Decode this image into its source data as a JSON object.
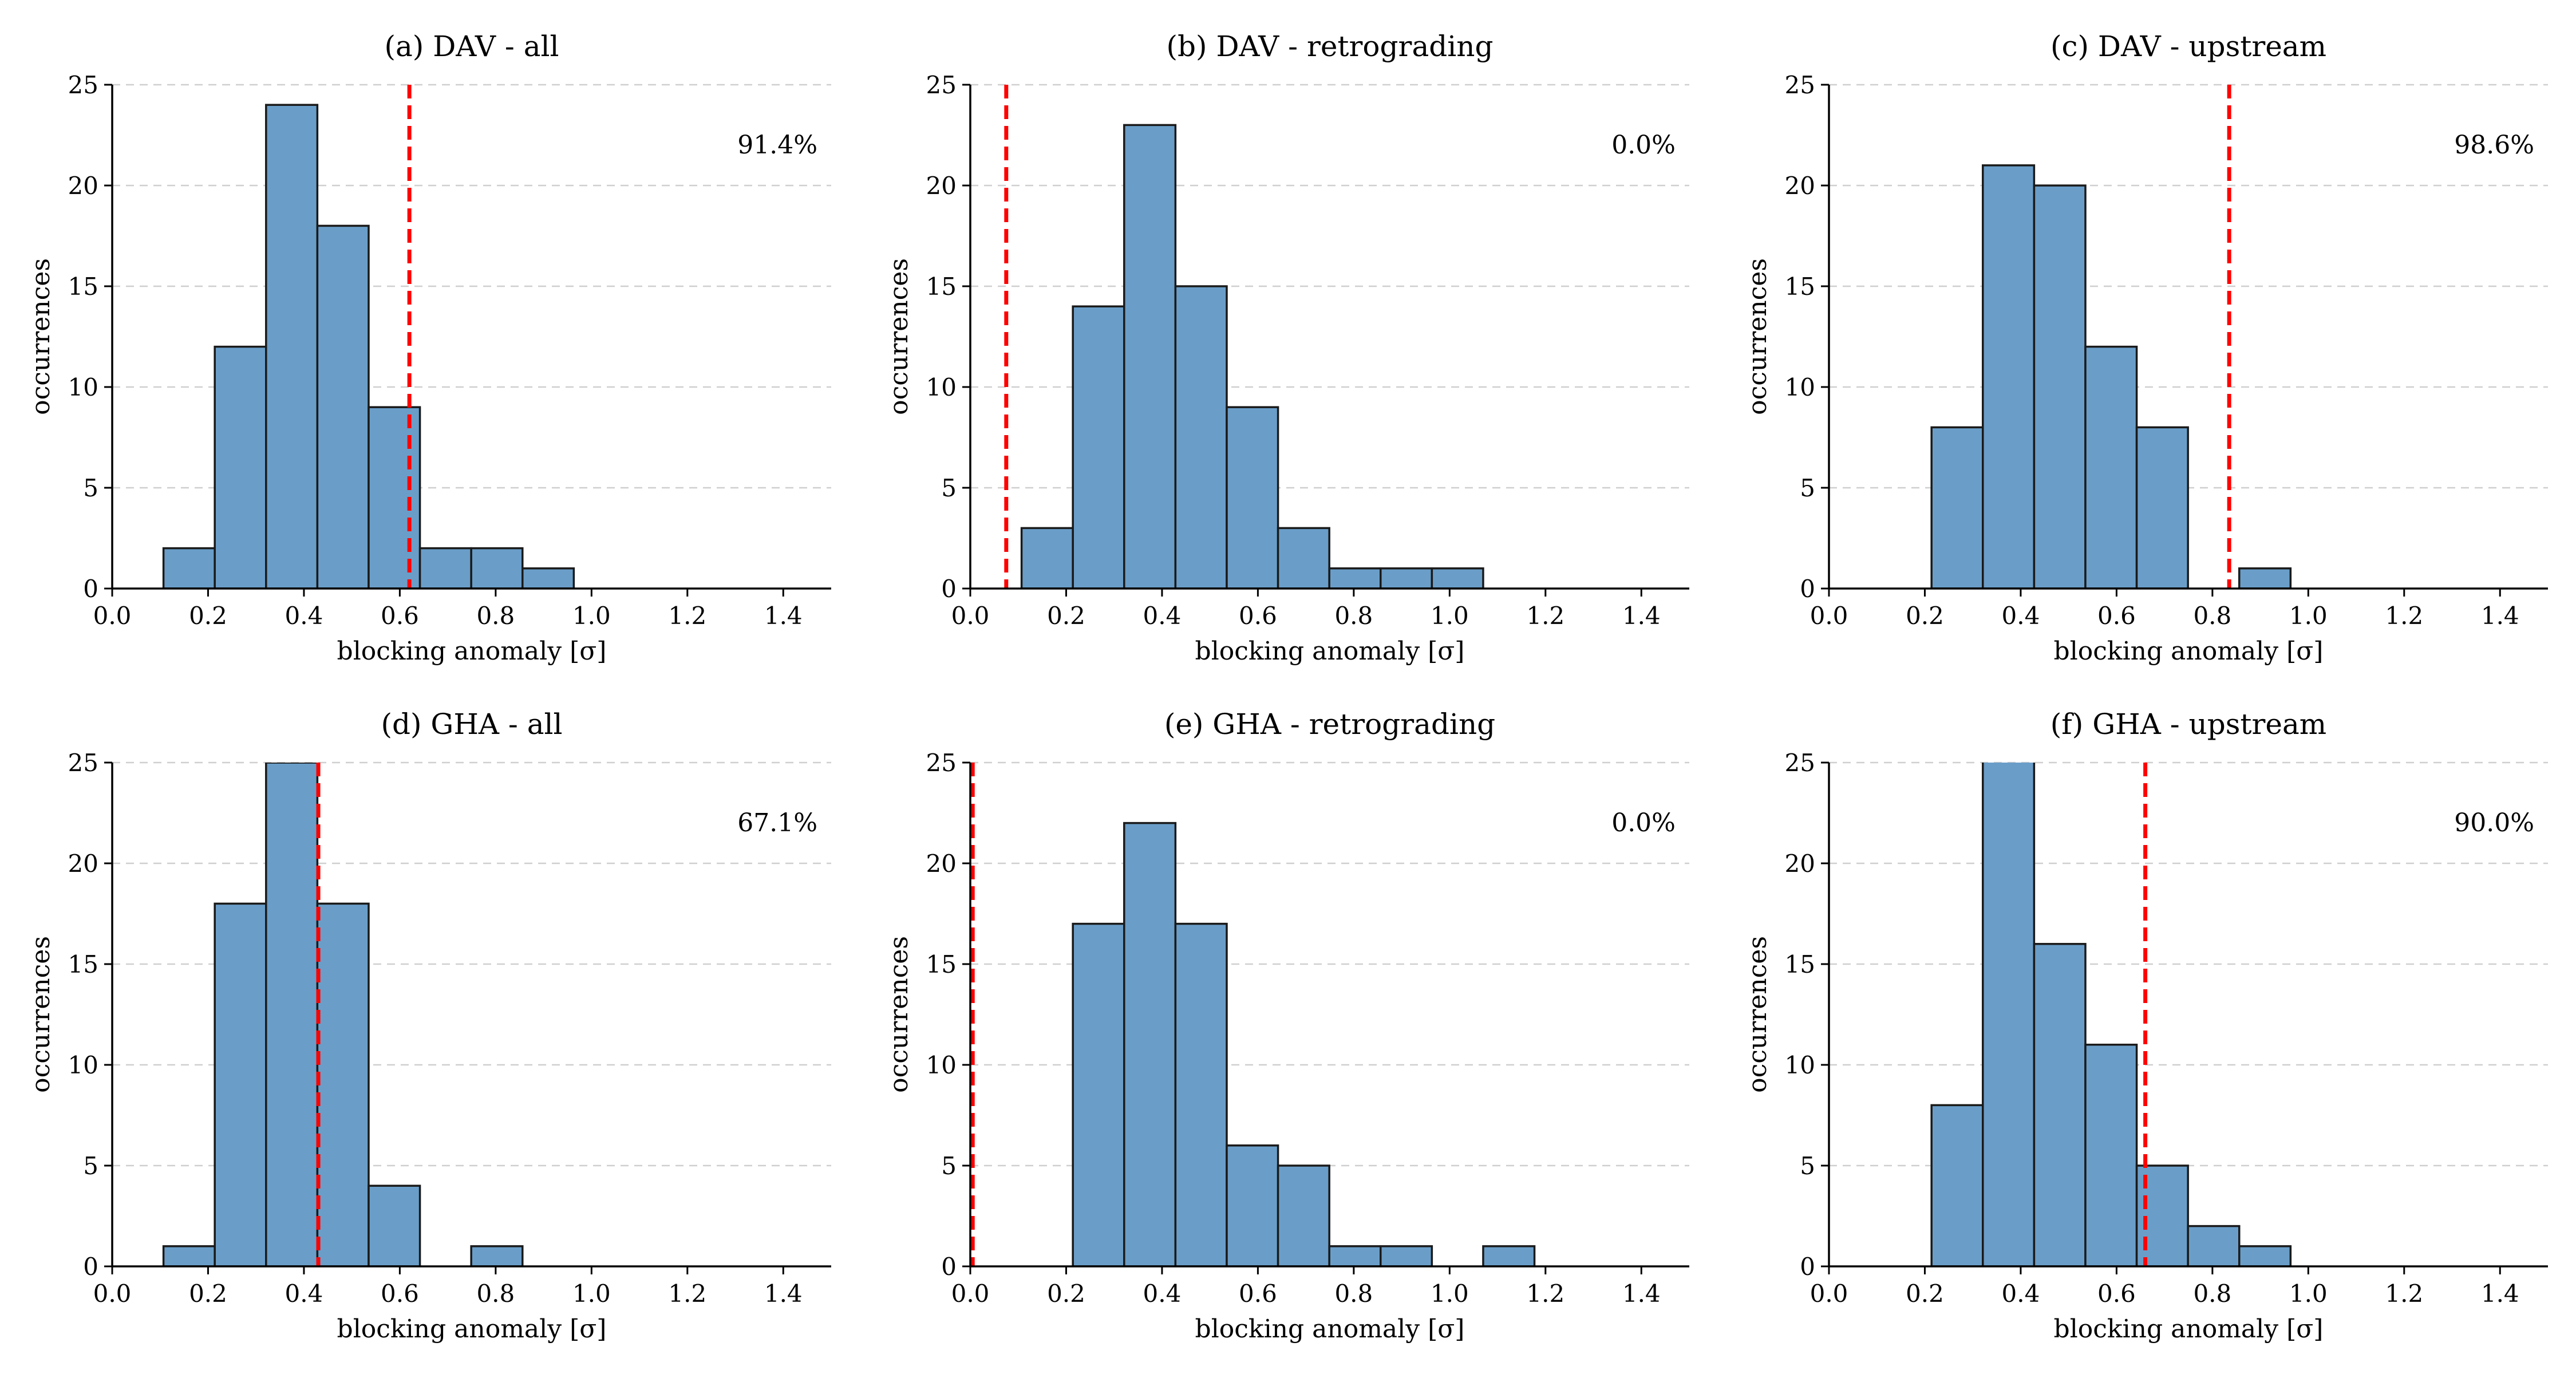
{
  "chart_data": [
    {
      "type": "bar",
      "title": "(a) DAV - all",
      "xlabel": "blocking anomaly [σ]",
      "ylabel": "occurrences",
      "xlim": [
        0.0,
        1.5
      ],
      "ylim": [
        0,
        25
      ],
      "xticks": [
        "0.0",
        "0.2",
        "0.4",
        "0.6",
        "0.8",
        "1.0",
        "1.2",
        "1.4"
      ],
      "yticks": [
        "0",
        "5",
        "10",
        "15",
        "20",
        "25"
      ],
      "bins": [
        [
          0.107,
          0.214
        ],
        [
          0.214,
          0.321
        ],
        [
          0.321,
          0.428
        ],
        [
          0.428,
          0.535
        ],
        [
          0.535,
          0.642
        ],
        [
          0.642,
          0.749
        ],
        [
          0.749,
          0.856
        ],
        [
          0.856,
          0.963
        ]
      ],
      "values": [
        2,
        12,
        24,
        18,
        9,
        2,
        2,
        1
      ],
      "threshold": 0.62,
      "percentage": "91.4%"
    },
    {
      "type": "bar",
      "title": "(b) DAV - retrograding",
      "xlabel": "blocking anomaly [σ]",
      "ylabel": "occurrences",
      "xlim": [
        0.0,
        1.5
      ],
      "ylim": [
        0,
        25
      ],
      "xticks": [
        "0.0",
        "0.2",
        "0.4",
        "0.6",
        "0.8",
        "1.0",
        "1.2",
        "1.4"
      ],
      "yticks": [
        "0",
        "5",
        "10",
        "15",
        "20",
        "25"
      ],
      "bins": [
        [
          0.107,
          0.214
        ],
        [
          0.214,
          0.321
        ],
        [
          0.321,
          0.428
        ],
        [
          0.428,
          0.535
        ],
        [
          0.535,
          0.642
        ],
        [
          0.642,
          0.749
        ],
        [
          0.749,
          0.856
        ],
        [
          0.856,
          0.963
        ],
        [
          0.963,
          1.07
        ]
      ],
      "values": [
        3,
        14,
        23,
        15,
        9,
        3,
        1,
        1,
        1
      ],
      "threshold": 0.075,
      "percentage": "0.0%"
    },
    {
      "type": "bar",
      "title": "(c) DAV - upstream",
      "xlabel": "blocking anomaly [σ]",
      "ylabel": "occurrences",
      "xlim": [
        0.0,
        1.5
      ],
      "ylim": [
        0,
        25
      ],
      "xticks": [
        "0.0",
        "0.2",
        "0.4",
        "0.6",
        "0.8",
        "1.0",
        "1.2",
        "1.4"
      ],
      "yticks": [
        "0",
        "5",
        "10",
        "15",
        "20",
        "25"
      ],
      "bins": [
        [
          0.214,
          0.321
        ],
        [
          0.321,
          0.428
        ],
        [
          0.428,
          0.535
        ],
        [
          0.535,
          0.642
        ],
        [
          0.642,
          0.749
        ],
        [
          0.856,
          0.963
        ]
      ],
      "values": [
        8,
        21,
        20,
        12,
        8,
        1
      ],
      "threshold": 0.835,
      "percentage": "98.6%"
    },
    {
      "type": "bar",
      "title": "(d) GHA - all",
      "xlabel": "blocking anomaly [σ]",
      "ylabel": "occurrences",
      "xlim": [
        0.0,
        1.5
      ],
      "ylim": [
        0,
        25
      ],
      "xticks": [
        "0.0",
        "0.2",
        "0.4",
        "0.6",
        "0.8",
        "1.0",
        "1.2",
        "1.4"
      ],
      "yticks": [
        "0",
        "5",
        "10",
        "15",
        "20",
        "25"
      ],
      "bins": [
        [
          0.107,
          0.214
        ],
        [
          0.214,
          0.321
        ],
        [
          0.321,
          0.428
        ],
        [
          0.428,
          0.535
        ],
        [
          0.535,
          0.642
        ],
        [
          0.749,
          0.856
        ]
      ],
      "values": [
        1,
        18,
        25,
        18,
        4,
        1
      ],
      "threshold": 0.43,
      "percentage": "67.1%"
    },
    {
      "type": "bar",
      "title": "(e) GHA - retrograding",
      "xlabel": "blocking anomaly [σ]",
      "ylabel": "occurrences",
      "xlim": [
        0.0,
        1.5
      ],
      "ylim": [
        0,
        25
      ],
      "xticks": [
        "0.0",
        "0.2",
        "0.4",
        "0.6",
        "0.8",
        "1.0",
        "1.2",
        "1.4"
      ],
      "yticks": [
        "0",
        "5",
        "10",
        "15",
        "20",
        "25"
      ],
      "bins": [
        [
          0.214,
          0.321
        ],
        [
          0.321,
          0.428
        ],
        [
          0.428,
          0.535
        ],
        [
          0.535,
          0.642
        ],
        [
          0.642,
          0.749
        ],
        [
          0.749,
          0.856
        ],
        [
          0.856,
          0.963
        ],
        [
          1.07,
          1.177
        ]
      ],
      "values": [
        17,
        22,
        17,
        6,
        5,
        1,
        1,
        1
      ],
      "threshold": 0.005,
      "percentage": "0.0%"
    },
    {
      "type": "bar",
      "title": "(f) GHA - upstream",
      "xlabel": "blocking anomaly [σ]",
      "ylabel": "occurrences",
      "xlim": [
        0.0,
        1.5
      ],
      "ylim": [
        0,
        25
      ],
      "xticks": [
        "0.0",
        "0.2",
        "0.4",
        "0.6",
        "0.8",
        "1.0",
        "1.2",
        "1.4"
      ],
      "yticks": [
        "0",
        "5",
        "10",
        "15",
        "20",
        "25"
      ],
      "bins": [
        [
          0.214,
          0.321
        ],
        [
          0.321,
          0.428
        ],
        [
          0.428,
          0.535
        ],
        [
          0.535,
          0.642
        ],
        [
          0.642,
          0.749
        ],
        [
          0.749,
          0.856
        ],
        [
          0.856,
          0.963
        ]
      ],
      "values": [
        8,
        26,
        16,
        11,
        5,
        2,
        1
      ],
      "threshold": 0.66,
      "percentage": "90.0%"
    }
  ],
  "colors": {
    "bar_fill": "#6a9ec9",
    "bar_edge": "#1a1a1a",
    "threshold_line": "#ff0000",
    "grid": "#cfcfcf"
  }
}
